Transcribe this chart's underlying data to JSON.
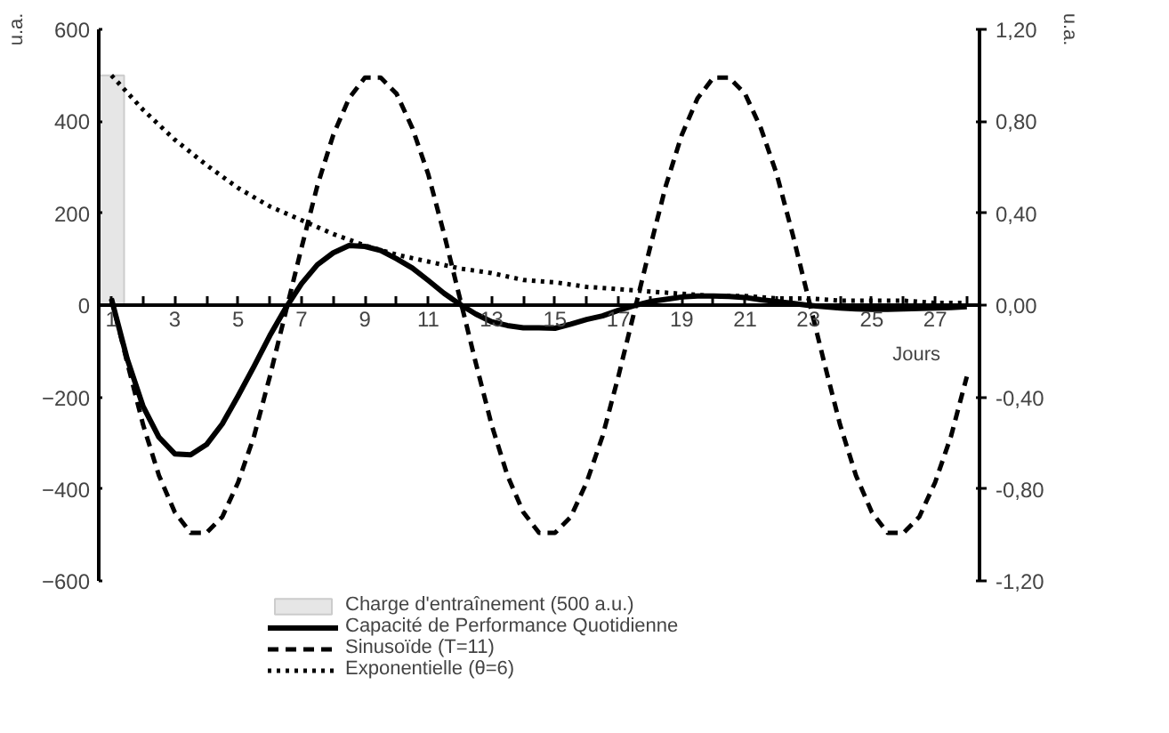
{
  "chart_data": {
    "type": "line",
    "ylabel": "u.a.",
    "y2label": "u.a.",
    "xlabel": "Jours",
    "xlim": [
      0.6,
      28.4
    ],
    "xticks": [
      1,
      {
        "value": 2,
        "label": null
      },
      3,
      {
        "value": 4,
        "label": null
      },
      5,
      {
        "value": 6,
        "label": null
      },
      7,
      {
        "value": 8,
        "label": null
      },
      9,
      {
        "value": 10,
        "label": null
      },
      11,
      {
        "value": 12,
        "label": null
      },
      13,
      {
        "value": 14,
        "label": null
      },
      15,
      {
        "value": 16,
        "label": null
      },
      17,
      {
        "value": 18,
        "label": null
      },
      19,
      {
        "value": 20,
        "label": null
      },
      21,
      {
        "value": 22,
        "label": null
      },
      23,
      {
        "value": 24,
        "label": null
      },
      25,
      {
        "value": 26,
        "label": null
      },
      27,
      {
        "value": 28,
        "label": null
      }
    ],
    "ylim": [
      -600,
      600
    ],
    "yticks": [
      -600,
      -400,
      -200,
      0,
      200,
      400,
      600
    ],
    "y2lim": [
      -1.2,
      1.2
    ],
    "y2ticks": [
      {
        "value": -1.2,
        "label": "-1,20"
      },
      {
        "value": -0.8,
        "label": "-0,80"
      },
      {
        "value": -0.4,
        "label": "-0,40"
      },
      {
        "value": 0,
        "label": "0,00"
      },
      {
        "value": 0.4,
        "label": "0,40"
      },
      {
        "value": 0.8,
        "label": "0,80"
      },
      {
        "value": 1.2,
        "label": "1,20"
      }
    ],
    "grid": false,
    "legend": "bottom",
    "series": [
      {
        "name": "Charge d'entraînement (500 a.u.)",
        "type": "bar",
        "color": "#e6e6e6",
        "x": [
          1
        ],
        "values": [
          500
        ]
      },
      {
        "name": "Capacité de Performance Quotidienne",
        "line_style": "solid",
        "color": "#000000",
        "x": [
          1,
          1.5,
          2,
          2.5,
          3,
          3.5,
          4,
          4.5,
          5,
          5.5,
          6,
          6.5,
          7,
          7.5,
          8,
          8.5,
          9,
          9.5,
          10,
          10.5,
          11,
          11.5,
          12,
          12.5,
          13,
          13.5,
          14,
          14.5,
          15,
          15.5,
          16,
          16.5,
          17,
          17.5,
          18,
          18.5,
          19,
          19.5,
          20,
          20.5,
          21,
          21.5,
          22,
          22.5,
          23,
          23.5,
          24,
          24.5,
          25,
          25.5,
          26,
          26.5,
          27,
          27.5,
          28
        ],
        "values": [
          14,
          -117,
          -220,
          -287,
          -323,
          -325,
          -303,
          -258,
          -197,
          -133,
          -66,
          -6,
          47,
          88,
          114,
          130,
          128,
          119,
          101,
          81,
          54,
          26,
          2,
          -19,
          -36,
          -44,
          -49,
          -49,
          -50,
          -41,
          -31,
          -23,
          -11,
          -1,
          8,
          13,
          18,
          20,
          20,
          19,
          17,
          12,
          8,
          4,
          0,
          -3,
          -6,
          -8,
          -9,
          -9,
          -8,
          -7,
          -6,
          -5,
          -3
        ]
      },
      {
        "name": "Sinusoïde (T=11)",
        "line_style": "dashed",
        "axis": "y2",
        "color": "#000000",
        "x": [
          1,
          1.5,
          2,
          2.5,
          3,
          3.5,
          4,
          4.5,
          5,
          5.5,
          6,
          6.5,
          7,
          7.5,
          8,
          8.5,
          9,
          9.5,
          10,
          10.5,
          11,
          11.5,
          12,
          12.5,
          13,
          13.5,
          14,
          14.5,
          15,
          15.5,
          16,
          16.5,
          17,
          17.5,
          18,
          18.5,
          19,
          19.5,
          20,
          20.5,
          21,
          21.5,
          22,
          22.5,
          23,
          23.5,
          24,
          24.5,
          25,
          25.5,
          26,
          26.5,
          27,
          27.5,
          28
        ],
        "values": [
          0.03,
          -0.25,
          -0.52,
          -0.74,
          -0.9,
          -0.99,
          -0.99,
          -0.92,
          -0.77,
          -0.57,
          -0.31,
          -0.03,
          0.25,
          0.52,
          0.74,
          0.9,
          0.99,
          0.99,
          0.92,
          0.77,
          0.57,
          0.31,
          0.03,
          -0.25,
          -0.52,
          -0.74,
          -0.9,
          -0.99,
          -0.99,
          -0.92,
          -0.77,
          -0.57,
          -0.31,
          -0.03,
          0.25,
          0.52,
          0.74,
          0.9,
          0.99,
          0.99,
          0.92,
          0.77,
          0.57,
          0.31,
          0.03,
          -0.25,
          -0.52,
          -0.74,
          -0.9,
          -0.99,
          -0.99,
          -0.92,
          -0.77,
          -0.57,
          -0.31
        ]
      },
      {
        "name": "Exponentielle (θ=6)",
        "line_style": "dotted",
        "axis": "y2",
        "color": "#000000",
        "x": [
          1,
          2,
          3,
          4,
          5,
          6,
          7,
          8,
          9,
          10,
          11,
          12,
          13,
          14,
          15,
          16,
          17,
          18,
          19,
          20,
          21,
          22,
          23,
          24,
          25,
          26,
          27,
          28
        ],
        "values": [
          1.0,
          0.85,
          0.72,
          0.61,
          0.51,
          0.43,
          0.37,
          0.31,
          0.26,
          0.22,
          0.19,
          0.16,
          0.14,
          0.11,
          0.1,
          0.08,
          0.07,
          0.06,
          0.05,
          0.04,
          0.04,
          0.03,
          0.03,
          0.02,
          0.02,
          0.02,
          0.01,
          0.01
        ]
      }
    ]
  }
}
